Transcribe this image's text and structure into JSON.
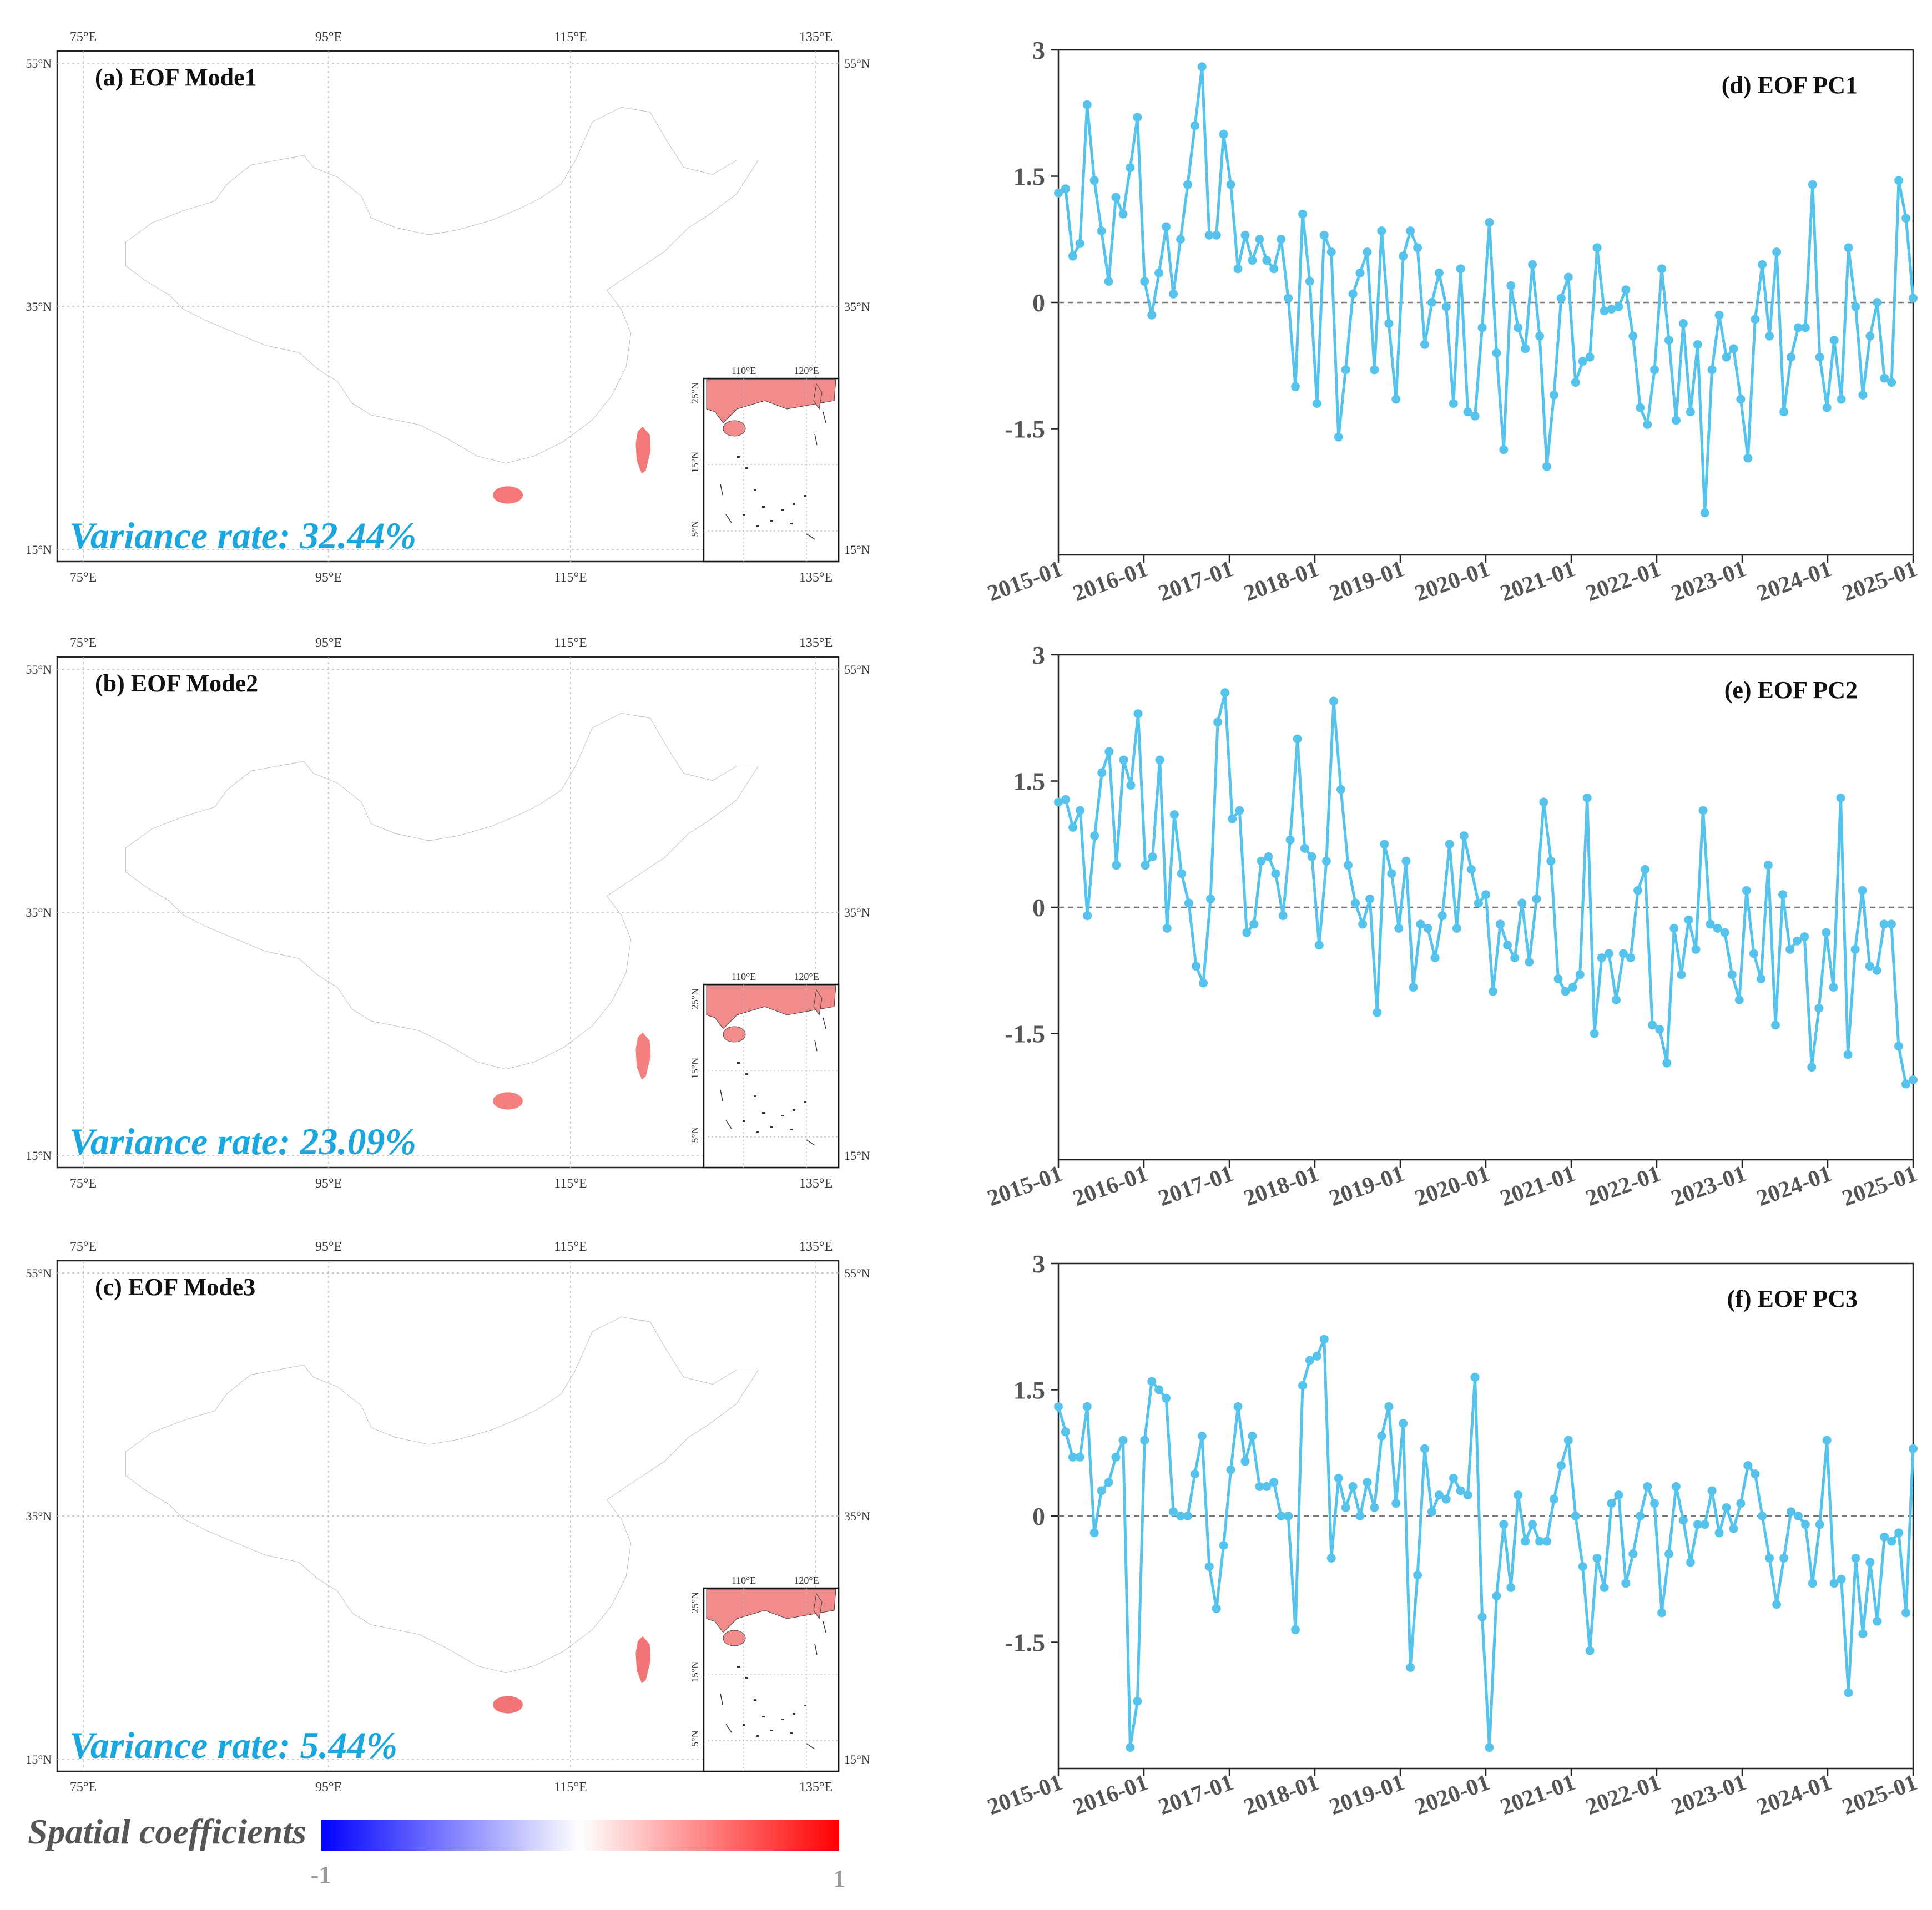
{
  "maps": [
    {
      "title": "(a) EOF Mode1",
      "variance_text": "Variance rate: 32.44%",
      "pattern": "mode1"
    },
    {
      "title": "(b) EOF Mode2",
      "variance_text": "Variance rate: 23.09%",
      "pattern": "mode2"
    },
    {
      "title": "(c) EOF Mode3",
      "variance_text": "Variance rate: 5.44%",
      "pattern": "mode3"
    }
  ],
  "map_axes": {
    "lon_ticks": [
      "75°E",
      "95°E",
      "115°E",
      "135°E"
    ],
    "lat_ticks": [
      "55°N",
      "35°N",
      "15°N"
    ],
    "inset_lon_ticks": [
      "110°E",
      "120°E"
    ],
    "inset_lat_ticks": [
      "25°N",
      "15°N",
      "5°N"
    ]
  },
  "colorbar": {
    "label": "Spatial coefficients",
    "min_label": "-1",
    "max_label": "1",
    "low_color": "#0000ff",
    "mid_color": "#ffffff",
    "high_color": "#ff0000"
  },
  "colors": {
    "line": "#56c3ec",
    "variance_text": "#1aa7df",
    "zero_line": "#777777"
  },
  "chart_data": [
    {
      "type": "line",
      "title": "(d) EOF PC1",
      "xlabel": "",
      "ylabel": "",
      "ylim": [
        -3,
        3
      ],
      "yticks": [
        "3",
        "1.5",
        "0",
        "-1.5"
      ],
      "x_ticks": [
        "2015-01",
        "2016-01",
        "2017-01",
        "2018-01",
        "2019-01",
        "2020-01",
        "2021-01",
        "2022-01",
        "2023-01",
        "2024-01",
        "2025-01"
      ],
      "x_start": "2015-01",
      "x_end": "2025-01",
      "values": [
        1.3,
        1.35,
        0.55,
        0.7,
        2.35,
        1.45,
        0.85,
        0.25,
        1.25,
        1.05,
        1.6,
        2.2,
        0.25,
        -0.15,
        0.35,
        0.9,
        0.1,
        0.75,
        1.4,
        2.1,
        2.8,
        0.8,
        0.8,
        2.0,
        1.4,
        0.4,
        0.8,
        0.5,
        0.75,
        0.5,
        0.4,
        0.75,
        0.05,
        -1.0,
        1.05,
        0.25,
        -1.2,
        0.8,
        0.6,
        -1.6,
        -0.8,
        0.1,
        0.35,
        0.6,
        -0.8,
        0.85,
        -0.25,
        -1.15,
        0.55,
        0.85,
        0.65,
        -0.5,
        0.0,
        0.35,
        -0.05,
        -1.2,
        0.4,
        -1.3,
        -1.35,
        -0.3,
        0.95,
        -0.6,
        -1.75,
        0.2,
        -0.3,
        -0.55,
        0.45,
        -0.4,
        -1.95,
        -1.1,
        0.05,
        0.3,
        -0.95,
        -0.7,
        -0.65,
        0.65,
        -0.1,
        -0.08,
        -0.05,
        0.15,
        -0.4,
        -1.25,
        -1.45,
        -0.8,
        0.4,
        -0.45,
        -1.4,
        -0.25,
        -1.3,
        -0.5,
        -2.5,
        -0.8,
        -0.15,
        -0.65,
        -0.55,
        -1.15,
        -1.85,
        -0.2,
        0.45,
        -0.4,
        0.6,
        -1.3,
        -0.65,
        -0.3,
        -0.3,
        1.4,
        -0.65,
        -1.25,
        -0.45,
        -1.15,
        0.65,
        -0.05,
        -1.1,
        -0.4,
        0.0,
        -0.9,
        -0.95,
        1.45,
        1.0,
        0.05
      ]
    },
    {
      "type": "line",
      "title": "(e) EOF PC2",
      "xlabel": "",
      "ylabel": "",
      "ylim": [
        -3,
        3
      ],
      "yticks": [
        "3",
        "1.5",
        "0",
        "-1.5"
      ],
      "x_ticks": [
        "2015-01",
        "2016-01",
        "2017-01",
        "2018-01",
        "2019-01",
        "2020-01",
        "2021-01",
        "2022-01",
        "2023-01",
        "2024-01",
        "2025-01"
      ],
      "x_start": "2015-01",
      "x_end": "2025-01",
      "values": [
        1.25,
        1.28,
        0.95,
        1.15,
        -0.1,
        0.85,
        1.6,
        1.85,
        0.5,
        1.75,
        1.45,
        2.3,
        0.5,
        0.6,
        1.75,
        -0.25,
        1.1,
        0.4,
        0.05,
        -0.7,
        -0.9,
        0.1,
        2.2,
        2.55,
        1.05,
        1.15,
        -0.3,
        -0.2,
        0.55,
        0.6,
        0.4,
        -0.1,
        0.8,
        2.0,
        0.7,
        0.6,
        -0.45,
        0.55,
        2.45,
        1.4,
        0.5,
        0.05,
        -0.2,
        0.1,
        -1.25,
        0.75,
        0.4,
        -0.25,
        0.55,
        -0.95,
        -0.2,
        -0.25,
        -0.6,
        -0.1,
        0.75,
        -0.25,
        0.85,
        0.45,
        0.05,
        0.15,
        -1.0,
        -0.2,
        -0.45,
        -0.6,
        0.05,
        -0.65,
        0.1,
        1.25,
        0.55,
        -0.85,
        -1.0,
        -0.95,
        -0.8,
        1.3,
        -1.5,
        -0.6,
        -0.55,
        -1.1,
        -0.55,
        -0.6,
        0.2,
        0.45,
        -1.4,
        -1.45,
        -1.85,
        -0.25,
        -0.8,
        -0.15,
        -0.5,
        1.15,
        -0.2,
        -0.25,
        -0.3,
        -0.8,
        -1.1,
        0.2,
        -0.55,
        -0.85,
        0.5,
        -1.4,
        0.15,
        -0.5,
        -0.4,
        -0.35,
        -1.9,
        -1.2,
        -0.3,
        -0.95,
        1.3,
        -1.75,
        -0.5,
        0.2,
        -0.7,
        -0.75,
        -0.2,
        -0.2,
        -1.65,
        -2.1,
        -2.05
      ]
    },
    {
      "type": "line",
      "title": "(f) EOF PC3",
      "xlabel": "",
      "ylabel": "",
      "ylim": [
        -3,
        3
      ],
      "yticks": [
        "3",
        "1.5",
        "0",
        "-1.5"
      ],
      "x_ticks": [
        "2015-01",
        "2016-01",
        "2017-01",
        "2018-01",
        "2019-01",
        "2020-01",
        "2021-01",
        "2022-01",
        "2023-01",
        "2024-01",
        "2025-01"
      ],
      "x_start": "2015-01",
      "x_end": "2025-01",
      "values": [
        1.3,
        1.0,
        0.7,
        0.7,
        1.3,
        -0.2,
        0.3,
        0.4,
        0.7,
        0.9,
        -2.75,
        -2.2,
        0.9,
        1.6,
        1.5,
        1.4,
        0.05,
        0.0,
        0.0,
        0.5,
        0.95,
        -0.6,
        -1.1,
        -0.35,
        0.55,
        1.3,
        0.65,
        0.95,
        0.35,
        0.35,
        0.4,
        0.0,
        0.0,
        -1.35,
        1.55,
        1.85,
        1.9,
        2.1,
        -0.5,
        0.45,
        0.1,
        0.35,
        0.0,
        0.4,
        0.1,
        0.95,
        1.3,
        0.15,
        1.1,
        -1.8,
        -0.7,
        0.8,
        0.05,
        0.25,
        0.2,
        0.45,
        0.3,
        0.25,
        1.65,
        -1.2,
        -2.75,
        -0.95,
        -0.1,
        -0.85,
        0.25,
        -0.3,
        -0.1,
        -0.3,
        -0.3,
        0.2,
        0.6,
        0.9,
        0.0,
        -0.6,
        -1.6,
        -0.5,
        -0.85,
        0.15,
        0.25,
        -0.8,
        -0.45,
        0.0,
        0.35,
        0.15,
        -1.15,
        -0.45,
        0.35,
        -0.05,
        -0.55,
        -0.1,
        -0.1,
        0.3,
        -0.2,
        0.1,
        -0.15,
        0.15,
        0.6,
        0.5,
        0.0,
        -0.5,
        -1.05,
        -0.5,
        0.05,
        0.0,
        -0.1,
        -0.8,
        -0.1,
        0.9,
        -0.8,
        -0.75,
        -2.1,
        -0.5,
        -1.4,
        -0.55,
        -1.25,
        -0.25,
        -0.3,
        -0.2,
        -1.15,
        0.8
      ]
    }
  ]
}
